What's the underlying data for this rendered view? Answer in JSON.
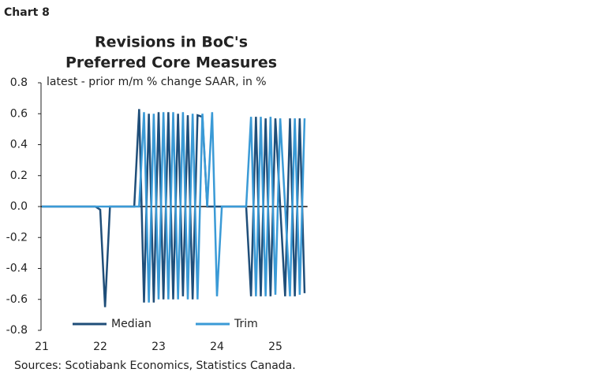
{
  "page_label": "Chart 8",
  "chart_data": {
    "type": "line",
    "title": [
      "Revisions in BoC's",
      "Preferred Core Measures"
    ],
    "subtitle": "latest - prior m/m % change SAAR, in %",
    "source": "Sources: Scotiabank Economics, Statistics Canada.",
    "x": [
      21,
      21.083,
      21.167,
      21.25,
      21.333,
      21.417,
      21.5,
      21.583,
      21.667,
      21.75,
      21.833,
      21.917,
      22,
      22.083,
      22.167,
      22.25,
      22.333,
      22.417,
      22.5,
      22.583,
      22.667,
      22.75,
      22.833,
      22.917,
      23,
      23.083,
      23.167,
      23.25,
      23.333,
      23.417,
      23.5,
      23.583,
      23.667,
      23.75,
      23.833,
      23.917,
      24,
      24.083,
      24.167,
      24.25,
      24.333,
      24.417,
      24.5,
      24.583,
      24.667,
      24.75,
      24.833,
      24.917,
      25,
      25.083,
      25.167,
      25.25,
      25.333,
      25.417,
      25.5
    ],
    "series": [
      {
        "name": "Median",
        "color": "#1f4e79",
        "values": [
          0,
          0,
          0,
          0,
          0,
          0,
          0,
          0,
          0,
          0,
          0,
          0,
          -0.02,
          -0.65,
          0,
          0,
          0,
          0,
          0,
          0,
          0.63,
          -0.62,
          0.6,
          -0.62,
          0.61,
          -0.6,
          0.61,
          -0.6,
          0.6,
          -0.58,
          0.59,
          -0.6,
          0.59,
          0.58,
          0,
          0,
          0,
          0,
          0,
          0,
          0,
          0,
          0,
          -0.58,
          0.58,
          -0.58,
          0.57,
          -0.58,
          0.57,
          0,
          -0.58,
          0.57,
          -0.58,
          0.57,
          -0.56
        ]
      },
      {
        "name": "Trim",
        "color": "#3a9ad6",
        "values": [
          0,
          0,
          0,
          0,
          0,
          0,
          0,
          0,
          0,
          0,
          0,
          0,
          0,
          0,
          0,
          0,
          0,
          0,
          0,
          0,
          0,
          0.61,
          -0.62,
          0.6,
          -0.6,
          0.61,
          -0.6,
          0.61,
          -0.6,
          0.61,
          -0.6,
          0.6,
          -0.6,
          0.6,
          0,
          0.61,
          -0.58,
          0,
          0,
          0,
          0,
          0,
          0,
          0.58,
          -0.58,
          0.58,
          -0.58,
          0.58,
          -0.57,
          0.57,
          0,
          -0.58,
          0.57,
          -0.57,
          0.57
        ]
      }
    ],
    "xlim": [
      21,
      25.55
    ],
    "xticks": [
      21,
      22,
      23,
      24,
      25
    ],
    "ylim": [
      -0.8,
      0.8
    ],
    "yticks": [
      -0.8,
      -0.6,
      -0.4,
      -0.2,
      {
        "value": 0,
        "label": "0.0"
      },
      0.2,
      0.4,
      0.6,
      0.8
    ],
    "legend": "bottom"
  }
}
